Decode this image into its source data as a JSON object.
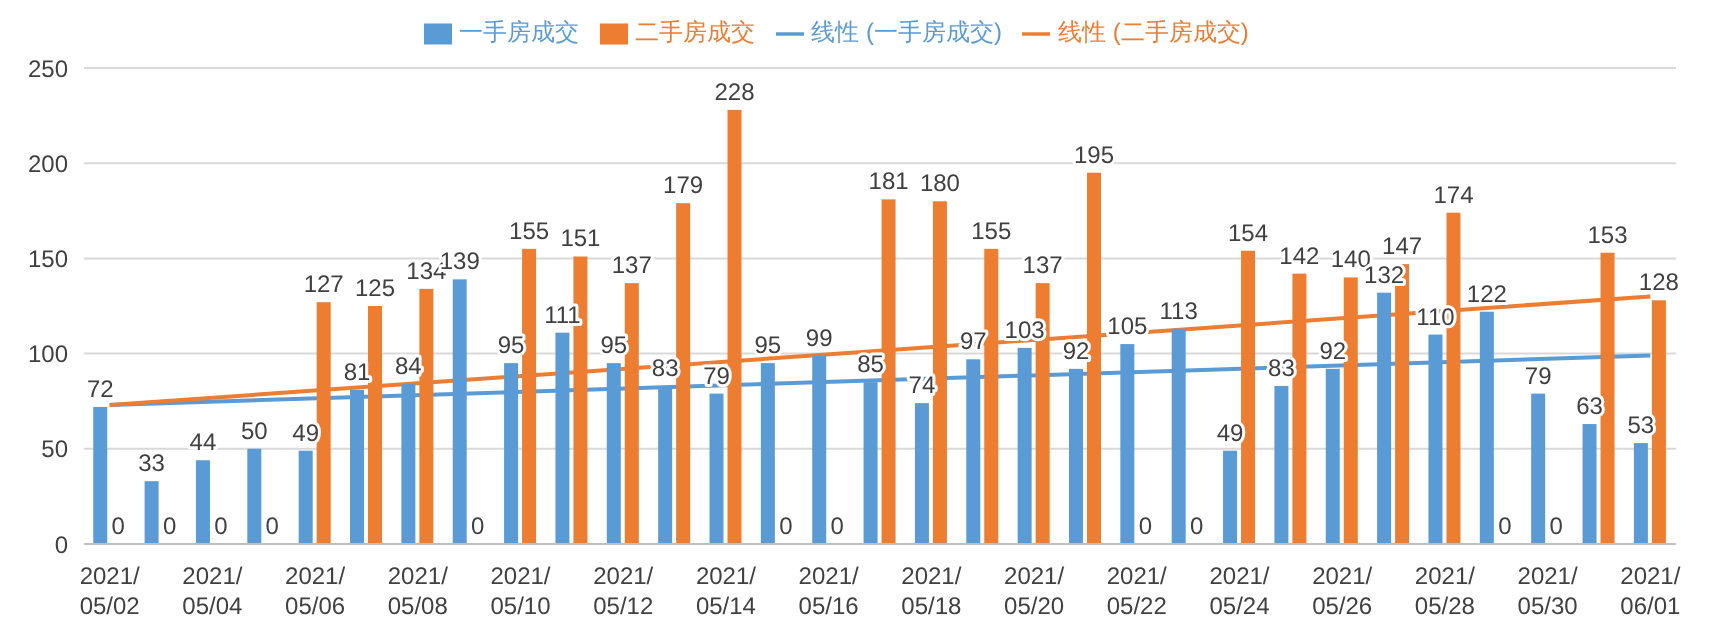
{
  "chart_data": {
    "type": "bar",
    "categories": [
      "2021/05/02",
      null,
      "2021/05/04",
      null,
      "2021/05/06",
      null,
      "2021/05/08",
      null,
      "2021/05/10",
      null,
      "2021/05/12",
      null,
      "2021/05/14",
      null,
      "2021/05/16",
      null,
      "2021/05/18",
      null,
      "2021/05/20",
      null,
      "2021/05/22",
      null,
      "2021/05/24",
      null,
      "2021/05/26",
      null,
      "2021/05/28",
      null,
      "2021/05/30",
      null,
      "2021/06/01"
    ],
    "series": [
      {
        "name": "一手房成交",
        "color": "#5b9bd5",
        "values": [
          72,
          33,
          44,
          50,
          49,
          81,
          84,
          139,
          95,
          111,
          95,
          83,
          79,
          95,
          99,
          85,
          74,
          97,
          103,
          92,
          105,
          113,
          49,
          83,
          92,
          132,
          110,
          122,
          79,
          63,
          53
        ],
        "value_labels": [
          "72",
          "33",
          "44",
          "50",
          "49",
          "81",
          "84",
          "139",
          "95",
          "111",
          "95",
          "83",
          "79",
          "95",
          "99",
          "85",
          "74",
          "97",
          "103",
          "92",
          "105",
          "113",
          "49",
          "83",
          "92",
          "132",
          "110",
          "122",
          "79",
          "63",
          "53"
        ]
      },
      {
        "name": "二手房成交",
        "color": "#ed7d31",
        "values": [
          0,
          0,
          0,
          0,
          127,
          125,
          134,
          0,
          155,
          151,
          137,
          179,
          228,
          0,
          0,
          181,
          180,
          155,
          137,
          195,
          0,
          0,
          154,
          142,
          140,
          147,
          174,
          0,
          0,
          153,
          128
        ],
        "value_labels": [
          "0",
          "0",
          "0",
          "0",
          "127",
          "125",
          "134",
          "0",
          "155",
          "151",
          "137",
          "179",
          "228",
          "0",
          "0",
          "181",
          "180",
          "155",
          "137",
          "195",
          "0",
          "0",
          "154",
          "142",
          "140",
          "147",
          "174",
          "0",
          "0",
          "153",
          "128"
        ]
      },
      {
        "name": "线性 (一手房成交)",
        "type": "line",
        "color": "#5b9bd5",
        "values": [
          73,
          null,
          null,
          null,
          null,
          null,
          null,
          null,
          null,
          null,
          null,
          null,
          null,
          null,
          null,
          null,
          null,
          null,
          null,
          null,
          null,
          null,
          null,
          null,
          null,
          null,
          null,
          null,
          null,
          null,
          99
        ]
      },
      {
        "name": "线性 (二手房成交)",
        "type": "line",
        "color": "#ed7d31",
        "values": [
          73,
          null,
          null,
          null,
          null,
          null,
          null,
          null,
          null,
          null,
          null,
          null,
          null,
          null,
          null,
          null,
          null,
          null,
          null,
          null,
          null,
          null,
          null,
          null,
          null,
          null,
          null,
          null,
          null,
          null,
          130
        ]
      }
    ],
    "ylim": [
      0,
      250
    ],
    "yticks": [
      0,
      50,
      100,
      150,
      200,
      250
    ],
    "grid": "y",
    "legend": "top",
    "marker": "none"
  }
}
